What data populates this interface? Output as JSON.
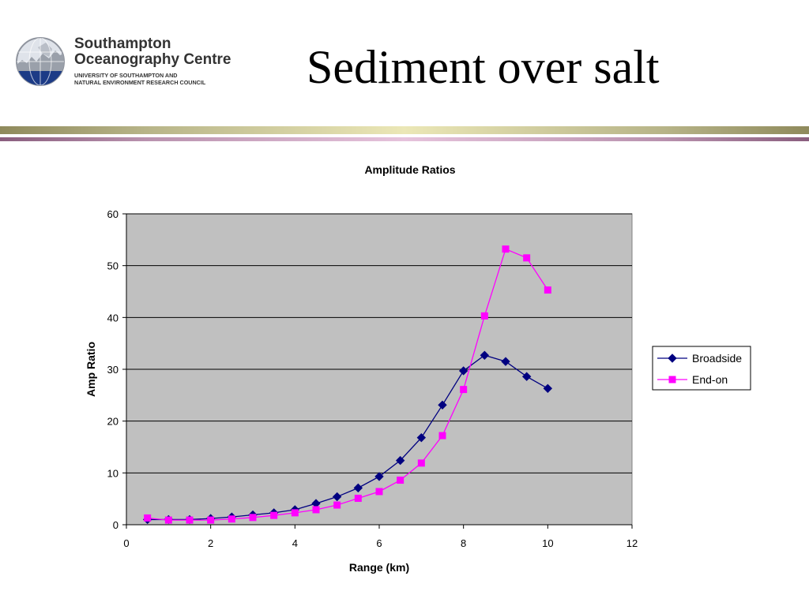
{
  "logo": {
    "name": "Southampton\nOceanography Centre",
    "sub": "UNIVERSITY OF SOUTHAMPTON AND\nNATURAL ENVIRONMENT RESEARCH COUNCIL",
    "icon": "globe-icon"
  },
  "slide": {
    "title": "Sediment over salt"
  },
  "colors": {
    "plot_bg": "#c0c0c0",
    "broadside": "#000080",
    "end_on": "#ff00ff",
    "rule_top": "#b7b488",
    "rule_bottom": "#b992ae"
  },
  "chart_data": {
    "type": "line",
    "title": "Amplitude Ratios",
    "xlabel": "Range (km)",
    "ylabel": "Amp Ratio",
    "xlim": [
      0,
      12
    ],
    "ylim": [
      0,
      60
    ],
    "xticks": [
      "0",
      "2",
      "4",
      "6",
      "8",
      "10",
      "12"
    ],
    "yticks": [
      "0",
      "10",
      "20",
      "30",
      "40",
      "50",
      "60"
    ],
    "grid": "horizontal",
    "legend_position": "right",
    "series": [
      {
        "name": "Broadside",
        "marker": "diamond",
        "points": [
          [
            0.5,
            1.0
          ],
          [
            1.0,
            1.0
          ],
          [
            1.5,
            1.0
          ],
          [
            2.0,
            1.2
          ],
          [
            2.5,
            1.5
          ],
          [
            3.0,
            1.9
          ],
          [
            3.5,
            2.3
          ],
          [
            4.0,
            2.9
          ],
          [
            4.5,
            4.1
          ],
          [
            5.0,
            5.4
          ],
          [
            5.5,
            7.1
          ],
          [
            6.0,
            9.3
          ],
          [
            6.5,
            12.4
          ],
          [
            7.0,
            16.8
          ],
          [
            7.5,
            23.1
          ],
          [
            8.0,
            29.7
          ],
          [
            8.5,
            32.7
          ],
          [
            9.0,
            31.5
          ],
          [
            9.5,
            28.6
          ],
          [
            10.0,
            26.3
          ]
        ]
      },
      {
        "name": "End-on",
        "marker": "square",
        "points": [
          [
            0.5,
            1.3
          ],
          [
            1.0,
            0.9
          ],
          [
            1.5,
            0.9
          ],
          [
            2.0,
            0.9
          ],
          [
            2.5,
            1.1
          ],
          [
            3.0,
            1.4
          ],
          [
            3.5,
            1.8
          ],
          [
            4.0,
            2.3
          ],
          [
            4.5,
            2.9
          ],
          [
            5.0,
            3.8
          ],
          [
            5.5,
            5.1
          ],
          [
            6.0,
            6.4
          ],
          [
            6.5,
            8.6
          ],
          [
            7.0,
            11.9
          ],
          [
            7.5,
            17.2
          ],
          [
            8.0,
            26.1
          ],
          [
            8.5,
            40.3
          ],
          [
            9.0,
            53.2
          ],
          [
            9.5,
            51.5
          ],
          [
            10.0,
            45.3
          ]
        ]
      }
    ]
  }
}
